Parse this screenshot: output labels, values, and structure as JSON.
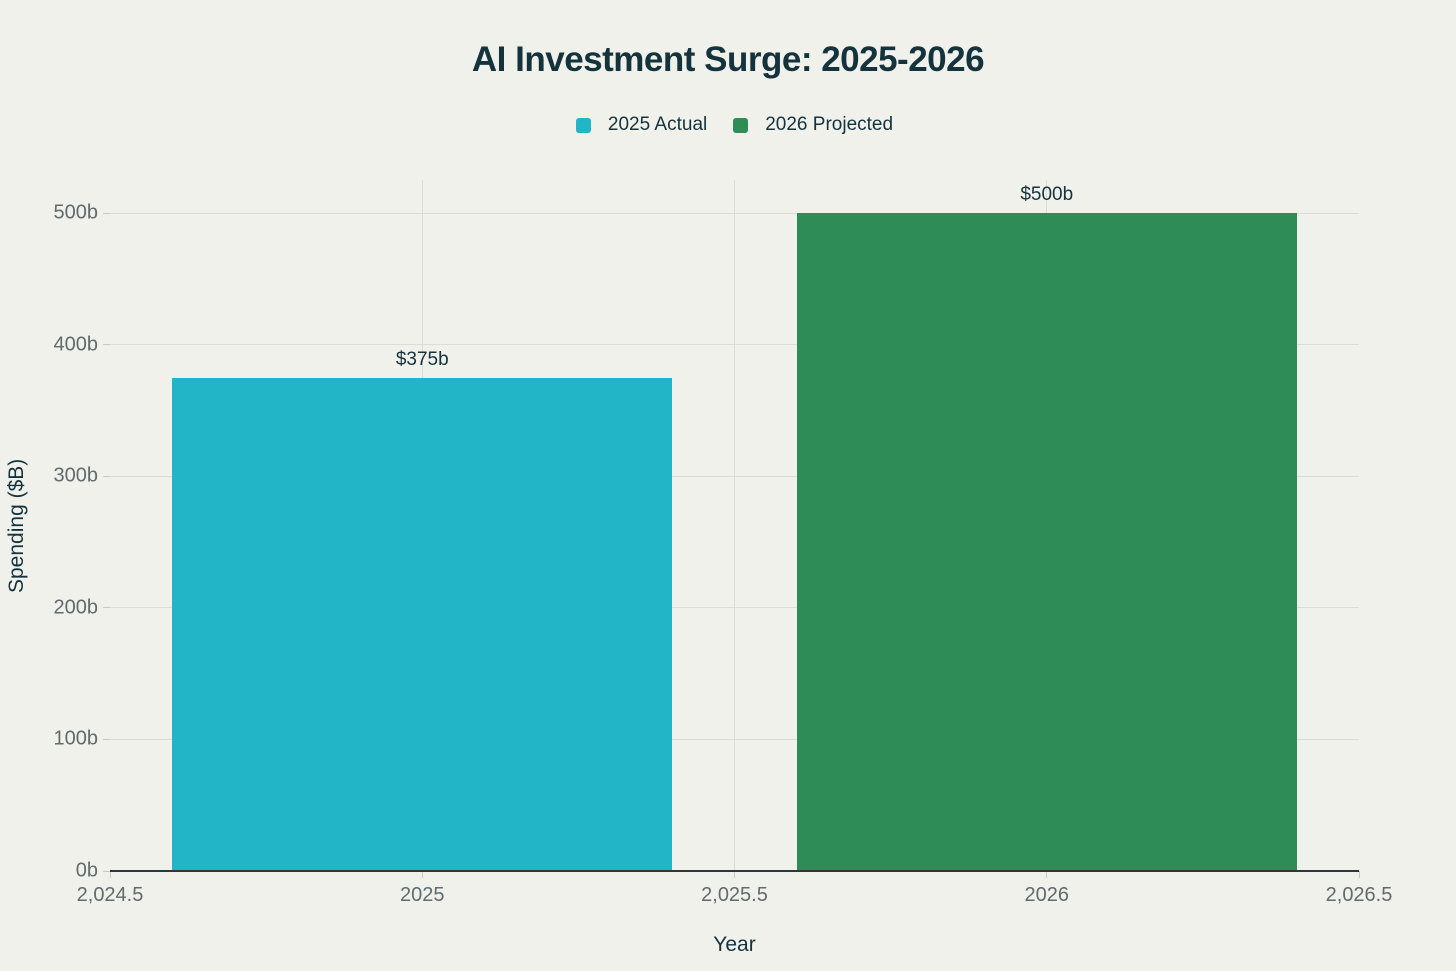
{
  "title": "AI Investment Surge: 2025-2026",
  "legend": [
    {
      "label": "2025 Actual",
      "color": "#22b5c8",
      "swatch_icon": "square-swatch"
    },
    {
      "label": "2026 Projected",
      "color": "#2e8c56",
      "swatch_icon": "square-swatch"
    }
  ],
  "chart_data": {
    "type": "bar",
    "title": "AI Investment Surge: 2025-2026",
    "xlabel": "Year",
    "ylabel": "Spending ($B)",
    "categories": [
      2025,
      2026
    ],
    "series": [
      {
        "name": "2025 Actual",
        "x": 2025,
        "value": 375,
        "value_label": "$375b",
        "color": "#22b5c8"
      },
      {
        "name": "2026 Projected",
        "x": 2026,
        "value": 500,
        "value_label": "$500b",
        "color": "#2e8c56"
      }
    ],
    "bar_width_x_units": 0.8,
    "xlim": [
      2024.5,
      2026.5
    ],
    "ylim": [
      0,
      500
    ],
    "x_ticks": [
      {
        "value": 2024.5,
        "label": "2,024.5"
      },
      {
        "value": 2025,
        "label": "2025"
      },
      {
        "value": 2025.5,
        "label": "2,025.5"
      },
      {
        "value": 2026,
        "label": "2026"
      },
      {
        "value": 2026.5,
        "label": "2,026.5"
      }
    ],
    "y_ticks": [
      {
        "value": 0,
        "label": "0b"
      },
      {
        "value": 100,
        "label": "100b"
      },
      {
        "value": 200,
        "label": "200b"
      },
      {
        "value": 300,
        "label": "300b"
      },
      {
        "value": 400,
        "label": "400b"
      },
      {
        "value": 500,
        "label": "500b"
      }
    ],
    "grid": true,
    "legend_position": "top-center"
  },
  "colors": {
    "background": "#f1f1ec",
    "heading_text": "#14333d",
    "tick_text": "#5f6b6d",
    "gridline": "#dcdcd6",
    "tick_mark": "#c9c9c3",
    "axis_line": "#2b373b",
    "bar_teal": "#22b5c8",
    "bar_green": "#2e8c56"
  }
}
